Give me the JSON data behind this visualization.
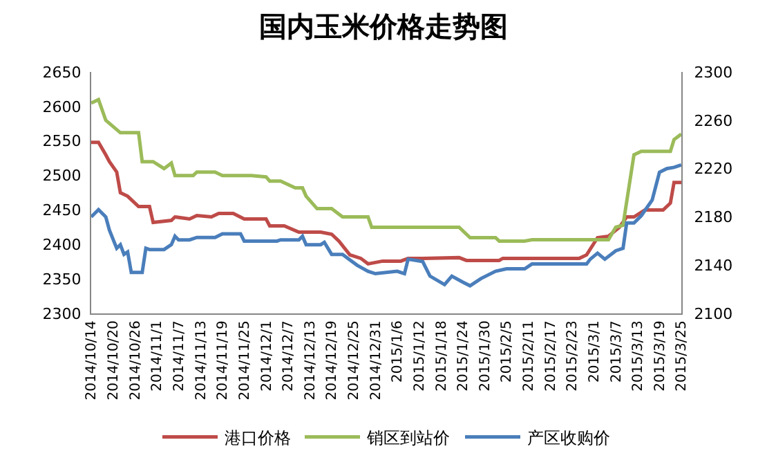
{
  "chart_data": {
    "type": "line",
    "title": "国内玉米价格走势图",
    "xlim": [
      "2014-10-14",
      "2015-03-25"
    ],
    "xticks": [
      {
        "value": "2014-10-14",
        "label": "2014/10/14"
      },
      {
        "value": "2014-10-20",
        "label": "2014/10/20"
      },
      {
        "value": "2014-10-26",
        "label": "2014/10/26"
      },
      {
        "value": "2014-11-01",
        "label": "2014/11/1"
      },
      {
        "value": "2014-11-07",
        "label": "2014/11/7"
      },
      {
        "value": "2014-11-13",
        "label": "2014/11/13"
      },
      {
        "value": "2014-11-19",
        "label": "2014/11/19"
      },
      {
        "value": "2014-11-25",
        "label": "2014/11/25"
      },
      {
        "value": "2014-12-01",
        "label": "2014/12/1"
      },
      {
        "value": "2014-12-07",
        "label": "2014/12/7"
      },
      {
        "value": "2014-12-13",
        "label": "2014/12/13"
      },
      {
        "value": "2014-12-19",
        "label": "2014/12/19"
      },
      {
        "value": "2014-12-25",
        "label": "2014/12/25"
      },
      {
        "value": "2014-12-31",
        "label": "2014/12/31"
      },
      {
        "value": "2015-01-06",
        "label": "2015/1/6"
      },
      {
        "value": "2015-01-12",
        "label": "2015/1/12"
      },
      {
        "value": "2015-01-18",
        "label": "2015/1/18"
      },
      {
        "value": "2015-01-24",
        "label": "2015/1/24"
      },
      {
        "value": "2015-01-30",
        "label": "2015/1/30"
      },
      {
        "value": "2015-02-05",
        "label": "2015/2/5"
      },
      {
        "value": "2015-02-11",
        "label": "2015/2/11"
      },
      {
        "value": "2015-02-17",
        "label": "2015/2/17"
      },
      {
        "value": "2015-02-23",
        "label": "2015/2/23"
      },
      {
        "value": "2015-03-01",
        "label": "2015/3/1"
      },
      {
        "value": "2015-03-07",
        "label": "2015/3/7"
      },
      {
        "value": "2015-03-13",
        "label": "2015/3/13"
      },
      {
        "value": "2015-03-19",
        "label": "2015/3/19"
      },
      {
        "value": "2015-03-25",
        "label": "2015/3/25"
      }
    ],
    "ylim": [
      2300,
      2650
    ],
    "yticks": [
      2300,
      2350,
      2400,
      2450,
      2500,
      2550,
      2600,
      2650
    ],
    "y2lim": [
      2100,
      2300
    ],
    "y2ticks": [
      2100,
      2140,
      2180,
      2220,
      2260,
      2300
    ],
    "legend": "bottom",
    "marker": "none",
    "line_style": "solid",
    "series": [
      {
        "name": "港口价格",
        "color": "#be4b48",
        "x": [
          "2014-10-14",
          "2014-10-16",
          "2014-10-18",
          "2014-10-19",
          "2014-10-21",
          "2014-10-22",
          "2014-10-24",
          "2014-10-27",
          "2014-10-30",
          "2014-10-31",
          "2014-11-05",
          "2014-11-06",
          "2014-11-10",
          "2014-11-12",
          "2014-11-16",
          "2014-11-18",
          "2014-11-22",
          "2014-11-25",
          "2014-12-01",
          "2014-12-02",
          "2014-12-06",
          "2014-12-10",
          "2014-12-16",
          "2014-12-19",
          "2014-12-21",
          "2014-12-24",
          "2014-12-27",
          "2014-12-29",
          "2015-01-02",
          "2015-01-07",
          "2015-01-09",
          "2015-01-13",
          "2015-01-23",
          "2015-01-25",
          "2015-02-03",
          "2015-02-04",
          "2015-02-25",
          "2015-02-27",
          "2015-03-02",
          "2015-03-05",
          "2015-03-08",
          "2015-03-10",
          "2015-03-12",
          "2015-03-15",
          "2015-03-20",
          "2015-03-22",
          "2015-03-23",
          "2015-03-25"
        ],
        "values": [
          2548,
          2548,
          2530,
          2520,
          2505,
          2475,
          2470,
          2455,
          2455,
          2432,
          2435,
          2440,
          2437,
          2442,
          2440,
          2445,
          2445,
          2437,
          2437,
          2427,
          2427,
          2418,
          2418,
          2415,
          2405,
          2385,
          2380,
          2372,
          2376,
          2376,
          2380,
          2380,
          2381,
          2377,
          2377,
          2380,
          2380,
          2385,
          2410,
          2412,
          2425,
          2440,
          2440,
          2450,
          2450,
          2460,
          2490,
          2490
        ]
      },
      {
        "name": "销区到站价",
        "color": "#9bbb59",
        "x": [
          "2014-10-14",
          "2014-10-16",
          "2014-10-18",
          "2014-10-22",
          "2014-10-27",
          "2014-10-28",
          "2014-10-31",
          "2014-11-03",
          "2014-11-05",
          "2014-11-06",
          "2014-11-11",
          "2014-11-12",
          "2014-11-17",
          "2014-11-19",
          "2014-11-27",
          "2014-12-01",
          "2014-12-02",
          "2014-12-05",
          "2014-12-09",
          "2014-12-11",
          "2014-12-12",
          "2014-12-15",
          "2014-12-19",
          "2014-12-22",
          "2014-12-29",
          "2014-12-30",
          "2015-01-23",
          "2015-01-26",
          "2015-02-02",
          "2015-02-03",
          "2015-02-10",
          "2015-02-12",
          "2015-03-05",
          "2015-03-07",
          "2015-03-09",
          "2015-03-12",
          "2015-03-14",
          "2015-03-22",
          "2015-03-23",
          "2015-03-25"
        ],
        "values": [
          2605,
          2610,
          2580,
          2562,
          2562,
          2520,
          2520,
          2510,
          2518,
          2500,
          2500,
          2505,
          2505,
          2500,
          2500,
          2498,
          2492,
          2492,
          2482,
          2482,
          2470,
          2452,
          2452,
          2440,
          2440,
          2425,
          2425,
          2410,
          2410,
          2405,
          2405,
          2407,
          2407,
          2425,
          2428,
          2530,
          2535,
          2535,
          2552,
          2560
        ]
      },
      {
        "name": "产区收购价",
        "color": "#4a7ebb",
        "axis": "y2",
        "x": [
          "2014-10-14",
          "2014-10-16",
          "2014-10-18",
          "2014-10-19",
          "2014-10-21",
          "2014-10-22",
          "2014-10-23",
          "2014-10-24",
          "2014-10-25",
          "2014-10-28",
          "2014-10-29",
          "2014-10-30",
          "2014-11-03",
          "2014-11-05",
          "2014-11-06",
          "2014-11-07",
          "2014-11-10",
          "2014-11-12",
          "2014-11-17",
          "2014-11-19",
          "2014-11-24",
          "2014-11-25",
          "2014-12-04",
          "2014-12-05",
          "2014-12-10",
          "2014-12-11",
          "2014-12-12",
          "2014-12-16",
          "2014-12-17",
          "2014-12-19",
          "2014-12-22",
          "2014-12-26",
          "2014-12-29",
          "2014-12-31",
          "2015-01-06",
          "2015-01-08",
          "2015-01-09",
          "2015-01-13",
          "2015-01-15",
          "2015-01-19",
          "2015-01-21",
          "2015-01-24",
          "2015-01-26",
          "2015-01-29",
          "2015-02-02",
          "2015-02-05",
          "2015-02-10",
          "2015-02-12",
          "2015-02-27",
          "2015-02-28",
          "2015-03-02",
          "2015-03-04",
          "2015-03-07",
          "2015-03-09",
          "2015-03-10",
          "2015-03-12",
          "2015-03-14",
          "2015-03-17",
          "2015-03-19",
          "2015-03-21",
          "2015-03-23",
          "2015-03-25"
        ],
        "values": [
          2180,
          2186,
          2180,
          2169,
          2154,
          2157,
          2149,
          2151,
          2134,
          2134,
          2154,
          2153,
          2153,
          2157,
          2164,
          2161,
          2161,
          2163,
          2163,
          2166,
          2166,
          2160,
          2160,
          2161,
          2161,
          2164,
          2157,
          2157,
          2159,
          2149,
          2149,
          2140,
          2135,
          2133,
          2135,
          2133,
          2145,
          2143,
          2131,
          2124,
          2131,
          2126,
          2123,
          2129,
          2135,
          2137,
          2137,
          2141,
          2141,
          2145,
          2150,
          2145,
          2152,
          2154,
          2175,
          2175,
          2181,
          2194,
          2217,
          2220,
          2221,
          2223
        ]
      }
    ]
  }
}
